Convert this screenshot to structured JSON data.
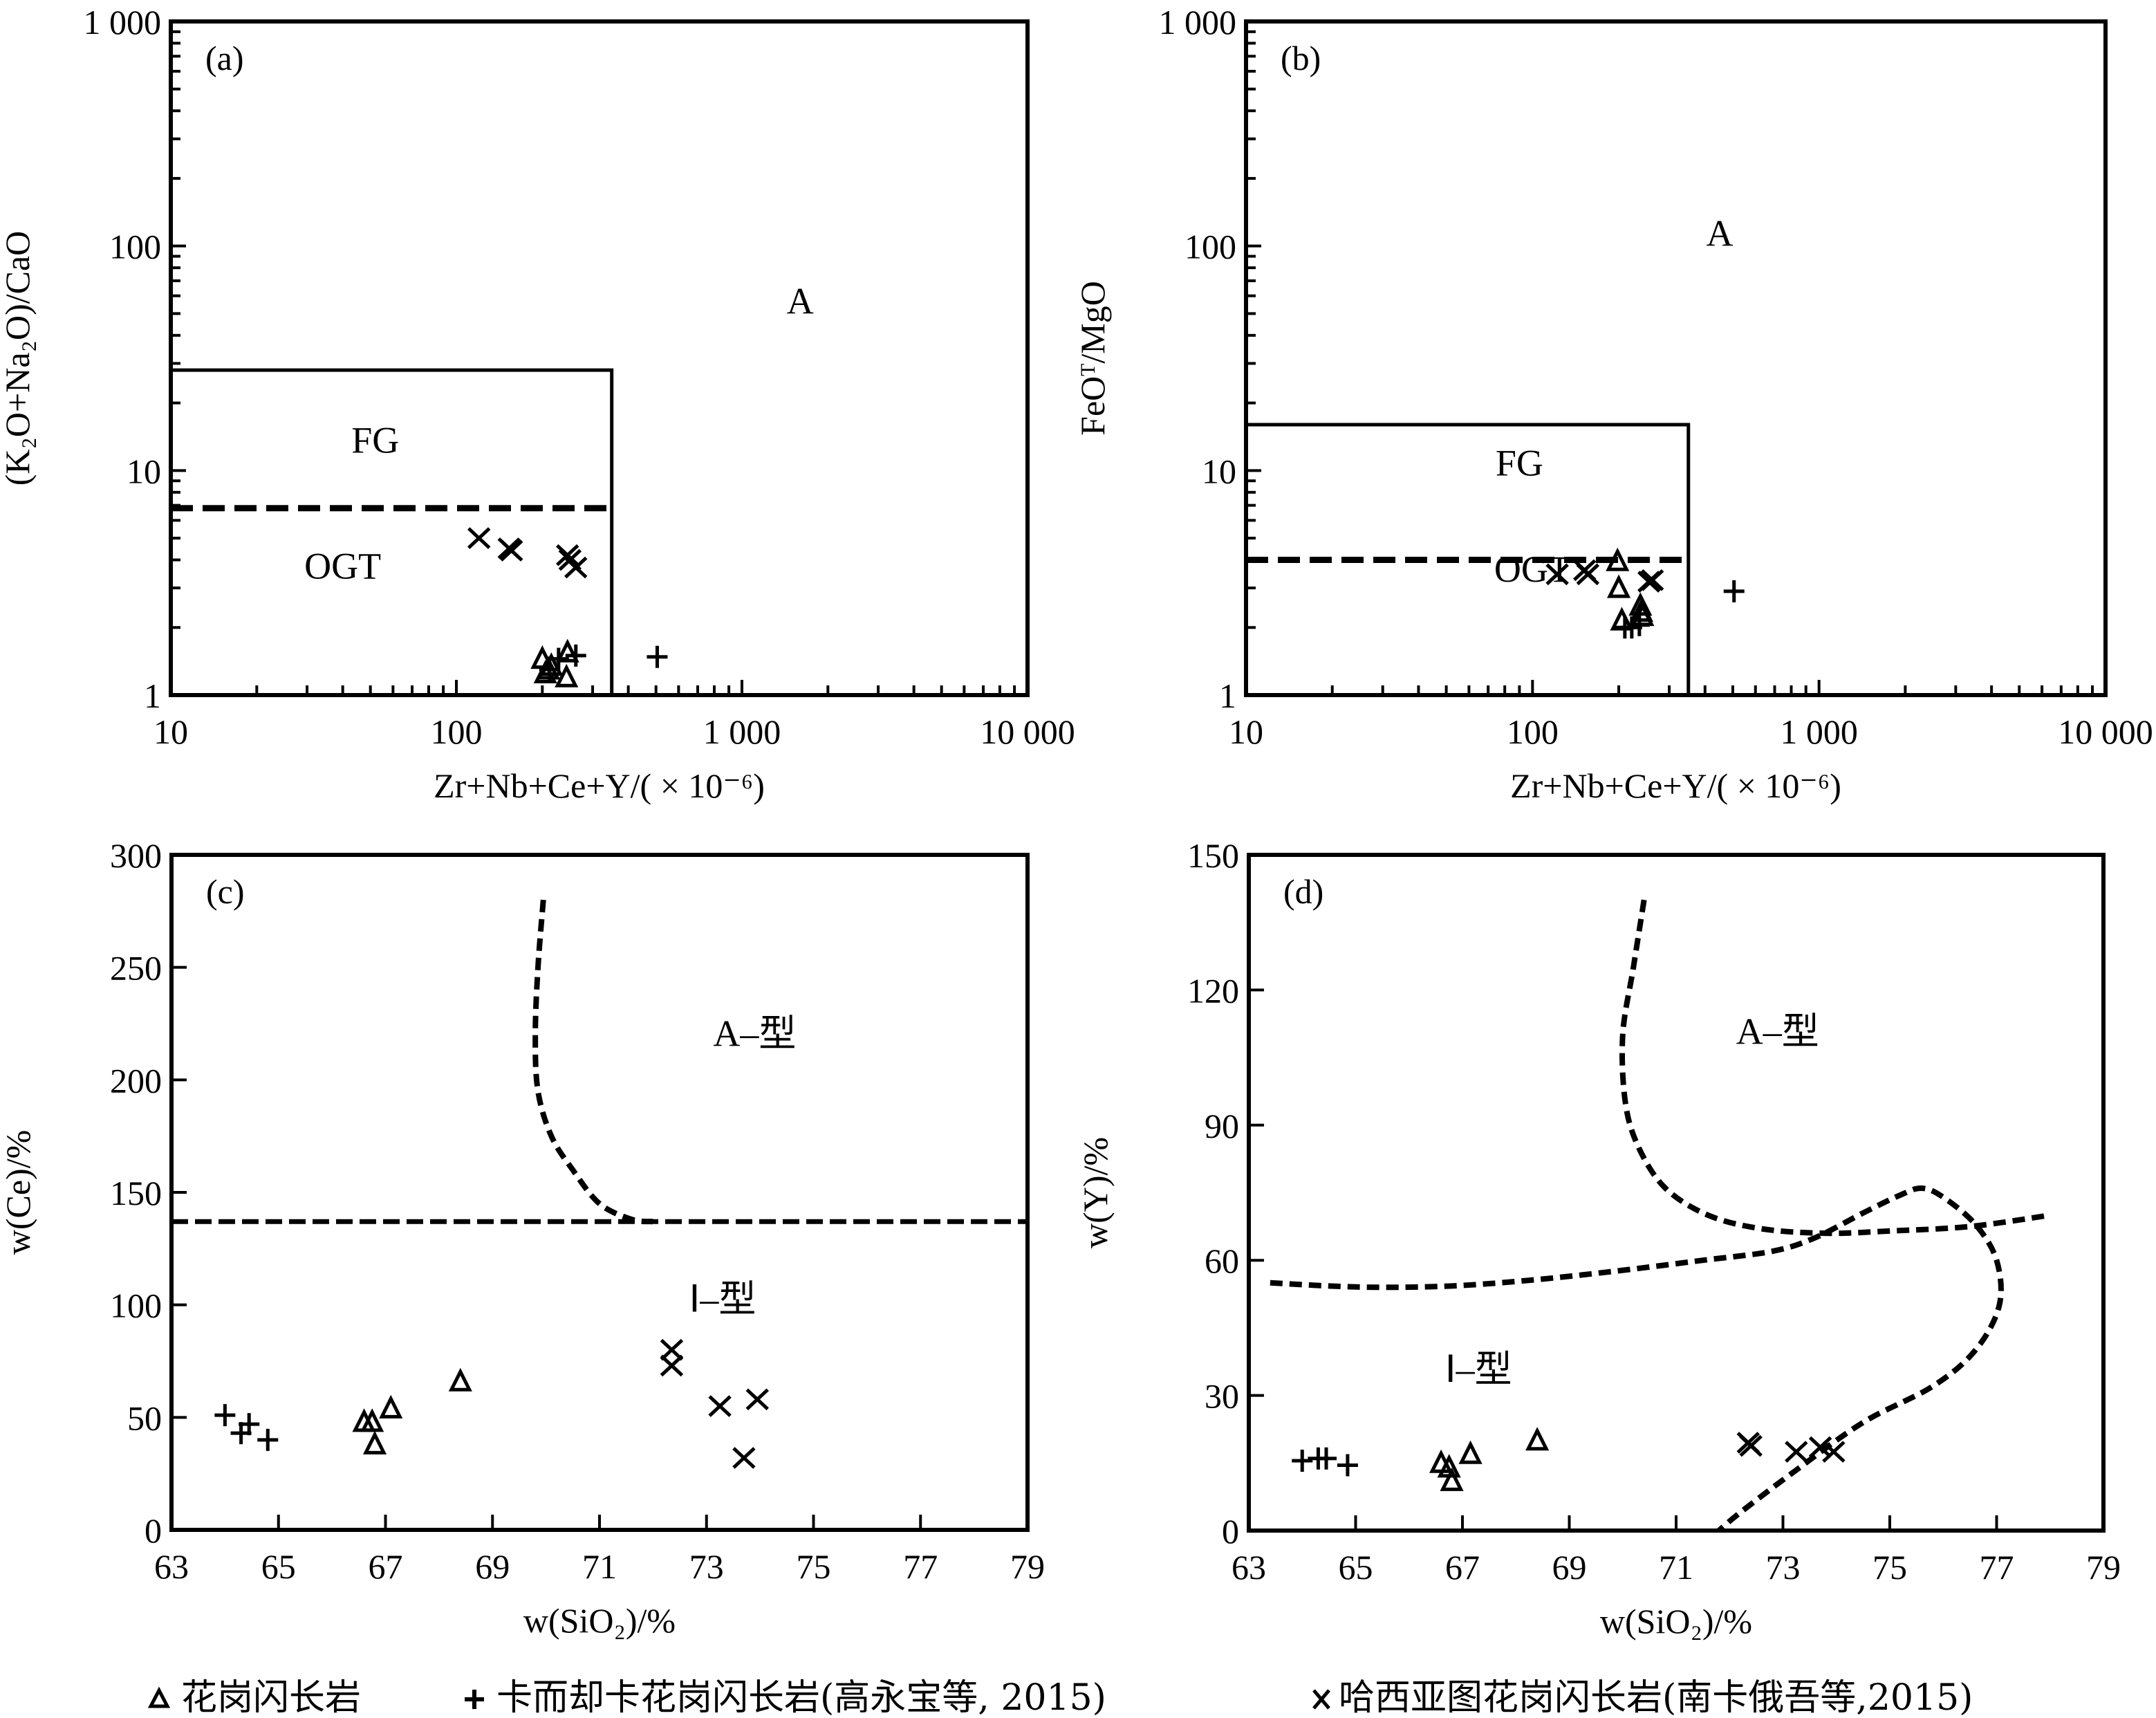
{
  "legend": {
    "items": [
      {
        "marker": "triangle",
        "label": "花岗闪长岩"
      },
      {
        "marker": "plus",
        "label": "卡而却卡花岗闪长岩(高永宝等, 2015)"
      },
      {
        "marker": "cross",
        "label": "哈西亚图花岗闪长岩(南卡俄吾等,2015)"
      }
    ]
  },
  "colors": {
    "ink": "#000000",
    "background": "#ffffff"
  },
  "chart_data": [
    {
      "id": "a",
      "type": "scatter",
      "panel_label": "(a)",
      "xscale": "log",
      "yscale": "log",
      "xlim": [
        10,
        10000
      ],
      "ylim": [
        1,
        1000
      ],
      "xticks": [
        10,
        100,
        1000,
        10000
      ],
      "xtick_labels": [
        "10",
        "100",
        "1 000",
        "10 000"
      ],
      "yticks": [
        1,
        10,
        100,
        1000
      ],
      "ytick_labels": [
        "1",
        "10",
        "100",
        "1 000"
      ],
      "xlabel": "Zr+Nb+Ce+Y/( × 10⁻⁶)",
      "ylabel": "(K₂O+Na₂O)/CaO",
      "regions": [
        {
          "label": "A",
          "x": 1600,
          "y": 50
        },
        {
          "label": "FG",
          "x": 52,
          "y": 12
        },
        {
          "label": "OGT",
          "x": 40,
          "y": 3.3
        }
      ],
      "boundaries": {
        "fg_box": {
          "x_max": 350,
          "y_max": 28
        },
        "ogt_dashed": {
          "y": 6.8,
          "x_max": 350
        }
      },
      "series": [
        {
          "name": "花岗闪长岩",
          "marker": "triangle",
          "points": [
            [
              200,
              1.45
            ],
            [
              205,
              1.25
            ],
            [
              215,
              1.35
            ],
            [
              245,
              1.55
            ],
            [
              243,
              1.2
            ],
            [
              210,
              1.3
            ]
          ]
        },
        {
          "name": "卡而却卡花岗闪长岩(高永宝等, 2015)",
          "marker": "plus",
          "points": [
            [
              212,
              1.3
            ],
            [
              228,
              1.45
            ],
            [
              262,
              1.5
            ],
            [
              505,
              1.48
            ]
          ]
        },
        {
          "name": "哈西亚图花岗闪长岩(南卡俄吾等,2015)",
          "marker": "cross",
          "points": [
            [
              120,
              5.0
            ],
            [
              153,
              4.5
            ],
            [
              156,
              4.4
            ],
            [
              245,
              4.2
            ],
            [
              262,
              3.7
            ],
            [
              250,
              4.0
            ]
          ]
        }
      ]
    },
    {
      "id": "b",
      "type": "scatter",
      "panel_label": "(b)",
      "xscale": "log",
      "yscale": "log",
      "xlim": [
        10,
        10000
      ],
      "ylim": [
        1,
        1000
      ],
      "xticks": [
        10,
        100,
        1000,
        10000
      ],
      "xtick_labels": [
        "10",
        "100",
        "1 000",
        "10 000"
      ],
      "yticks": [
        1,
        10,
        100,
        1000
      ],
      "ytick_labels": [
        "1",
        "10",
        "100",
        "1 000"
      ],
      "xlabel": "Zr+Nb+Ce+Y/( × 10⁻⁶)",
      "ylabel": "FeOᵀ/MgO",
      "regions": [
        {
          "label": "A",
          "x": 450,
          "y": 100
        },
        {
          "label": "FG",
          "x": 90,
          "y": 9.5
        },
        {
          "label": "OGT",
          "x": 100,
          "y": 3.2
        }
      ],
      "boundaries": {
        "fg_box": {
          "x_max": 350,
          "y_max": 16
        },
        "ogt_dashed": {
          "y": 4.0,
          "x_max": 350
        }
      },
      "series": [
        {
          "name": "花岗闪长岩",
          "marker": "triangle",
          "points": [
            [
              198,
              3.95
            ],
            [
              200,
              3.0
            ],
            [
              205,
              2.15
            ],
            [
              238,
              2.5
            ],
            [
              242,
              2.25
            ],
            [
              240,
              2.35
            ]
          ]
        },
        {
          "name": "卡而却卡花岗闪长岩(高永宝等, 2015)",
          "marker": "plus",
          "points": [
            [
              210,
              2.0
            ],
            [
              222,
              2.0
            ],
            [
              236,
              2.05
            ],
            [
              505,
              2.9
            ]
          ]
        },
        {
          "name": "哈西亚图花岗闪长岩(南卡俄吾等,2015)",
          "marker": "cross",
          "points": [
            [
              122,
              3.45
            ],
            [
              152,
              3.6
            ],
            [
              156,
              3.45
            ],
            [
              255,
              3.2
            ],
            [
              262,
              3.25
            ]
          ]
        }
      ]
    },
    {
      "id": "c",
      "type": "scatter",
      "panel_label": "(c)",
      "xscale": "linear",
      "yscale": "linear",
      "xlim": [
        63,
        79
      ],
      "ylim": [
        0,
        300
      ],
      "xticks": [
        63,
        65,
        67,
        69,
        71,
        73,
        75,
        77,
        79
      ],
      "xtick_labels": [
        "63",
        "65",
        "67",
        "69",
        "71",
        "73",
        "75",
        "77",
        "79"
      ],
      "yticks": [
        0,
        50,
        100,
        150,
        200,
        250,
        300
      ],
      "ytick_labels": [
        "0",
        "50",
        "100",
        "150",
        "200",
        "250",
        "300"
      ],
      "xlabel": "w(SiO₂)/%",
      "ylabel": "w(Ce)/%",
      "regions": [
        {
          "label": "A–型",
          "x": 73.9,
          "y": 215
        },
        {
          "label": "Ⅰ–型",
          "x": 73.3,
          "y": 97
        }
      ],
      "boundaries": {
        "horizontal_dashed": {
          "y": 137
        },
        "curve": [
          [
            69.95,
            280
          ],
          [
            69.85,
            250
          ],
          [
            69.8,
            220
          ],
          [
            69.85,
            195
          ],
          [
            70.1,
            175
          ],
          [
            70.5,
            160
          ],
          [
            71.0,
            145
          ],
          [
            71.6,
            138
          ],
          [
            72.0,
            137
          ]
        ]
      },
      "series": [
        {
          "name": "花岗闪长岩",
          "marker": "triangle",
          "points": [
            [
              66.6,
              48
            ],
            [
              66.75,
              48
            ],
            [
              66.8,
              38
            ],
            [
              67.1,
              54
            ],
            [
              68.4,
              66
            ]
          ]
        },
        {
          "name": "卡而却卡花岗闪长岩(高永宝等, 2015)",
          "marker": "plus",
          "points": [
            [
              64.0,
              51
            ],
            [
              64.3,
              43
            ],
            [
              64.45,
              47
            ],
            [
              64.8,
              40
            ]
          ]
        },
        {
          "name": "哈西亚图花岗闪长岩(南卡俄吾等,2015)",
          "marker": "cross",
          "points": [
            [
              72.35,
              80
            ],
            [
              72.35,
              73
            ],
            [
              73.25,
              55
            ],
            [
              73.95,
              58
            ],
            [
              73.7,
              32
            ]
          ]
        }
      ]
    },
    {
      "id": "d",
      "type": "scatter",
      "panel_label": "(d)",
      "xscale": "linear",
      "yscale": "linear",
      "xlim": [
        63,
        79
      ],
      "ylim": [
        0,
        150
      ],
      "xticks": [
        63,
        65,
        67,
        69,
        71,
        73,
        75,
        77,
        79
      ],
      "xtick_labels": [
        "63",
        "65",
        "67",
        "69",
        "71",
        "73",
        "75",
        "77",
        "79"
      ],
      "yticks": [
        0,
        30,
        60,
        90,
        120,
        150
      ],
      "ytick_labels": [
        "0",
        "30",
        "60",
        "90",
        "120",
        "150"
      ],
      "xlabel": "w(SiO₂)/%",
      "ylabel": "w(Y)/%",
      "regions": [
        {
          "label": "A–型",
          "x": 72.9,
          "y": 108
        },
        {
          "label": "Ⅰ–型",
          "x": 67.3,
          "y": 33
        }
      ],
      "boundaries": {
        "upper_curve": [
          [
            70.4,
            140
          ],
          [
            70.2,
            125
          ],
          [
            70.0,
            110
          ],
          [
            70.05,
            95
          ],
          [
            70.3,
            85
          ],
          [
            70.8,
            76
          ],
          [
            71.6,
            70
          ],
          [
            72.6,
            67
          ],
          [
            73.8,
            66
          ],
          [
            75.0,
            66.5
          ],
          [
            76.5,
            67.5
          ],
          [
            78.0,
            70
          ]
        ],
        "lower_curve": [
          [
            63.4,
            55
          ],
          [
            64.5,
            54.3
          ],
          [
            65.5,
            54
          ],
          [
            66.8,
            54.3
          ],
          [
            68.2,
            55.5
          ],
          [
            69.8,
            57.5
          ],
          [
            71.5,
            60
          ],
          [
            72.8,
            62
          ],
          [
            73.6,
            65
          ],
          [
            74.5,
            70.5
          ],
          [
            75.2,
            74.5
          ],
          [
            75.6,
            76
          ],
          [
            76.0,
            74
          ],
          [
            76.6,
            68
          ],
          [
            77.0,
            60
          ],
          [
            77.05,
            50
          ],
          [
            76.6,
            40
          ],
          [
            75.8,
            32
          ],
          [
            74.5,
            24
          ],
          [
            73.2,
            13
          ],
          [
            72.2,
            4
          ],
          [
            71.8,
            0
          ]
        ]
      },
      "series": [
        {
          "name": "花岗闪长岩",
          "marker": "triangle",
          "points": [
            [
              66.6,
              15
            ],
            [
              66.75,
              14
            ],
            [
              66.8,
              11
            ],
            [
              67.15,
              17
            ],
            [
              68.4,
              20
            ]
          ]
        },
        {
          "name": "卡而却卡花岗闪长岩(高永宝等, 2015)",
          "marker": "plus",
          "points": [
            [
              64.0,
              15.5
            ],
            [
              64.3,
              16
            ],
            [
              64.45,
              16
            ],
            [
              64.85,
              14.5
            ]
          ]
        },
        {
          "name": "哈西亚图花岗闪长岩(南卡俄吾等,2015)",
          "marker": "cross",
          "points": [
            [
              72.35,
              19.5
            ],
            [
              72.4,
              18.8
            ],
            [
              73.25,
              17.5
            ],
            [
              73.7,
              18.5
            ],
            [
              73.95,
              17.5
            ]
          ]
        }
      ]
    }
  ]
}
